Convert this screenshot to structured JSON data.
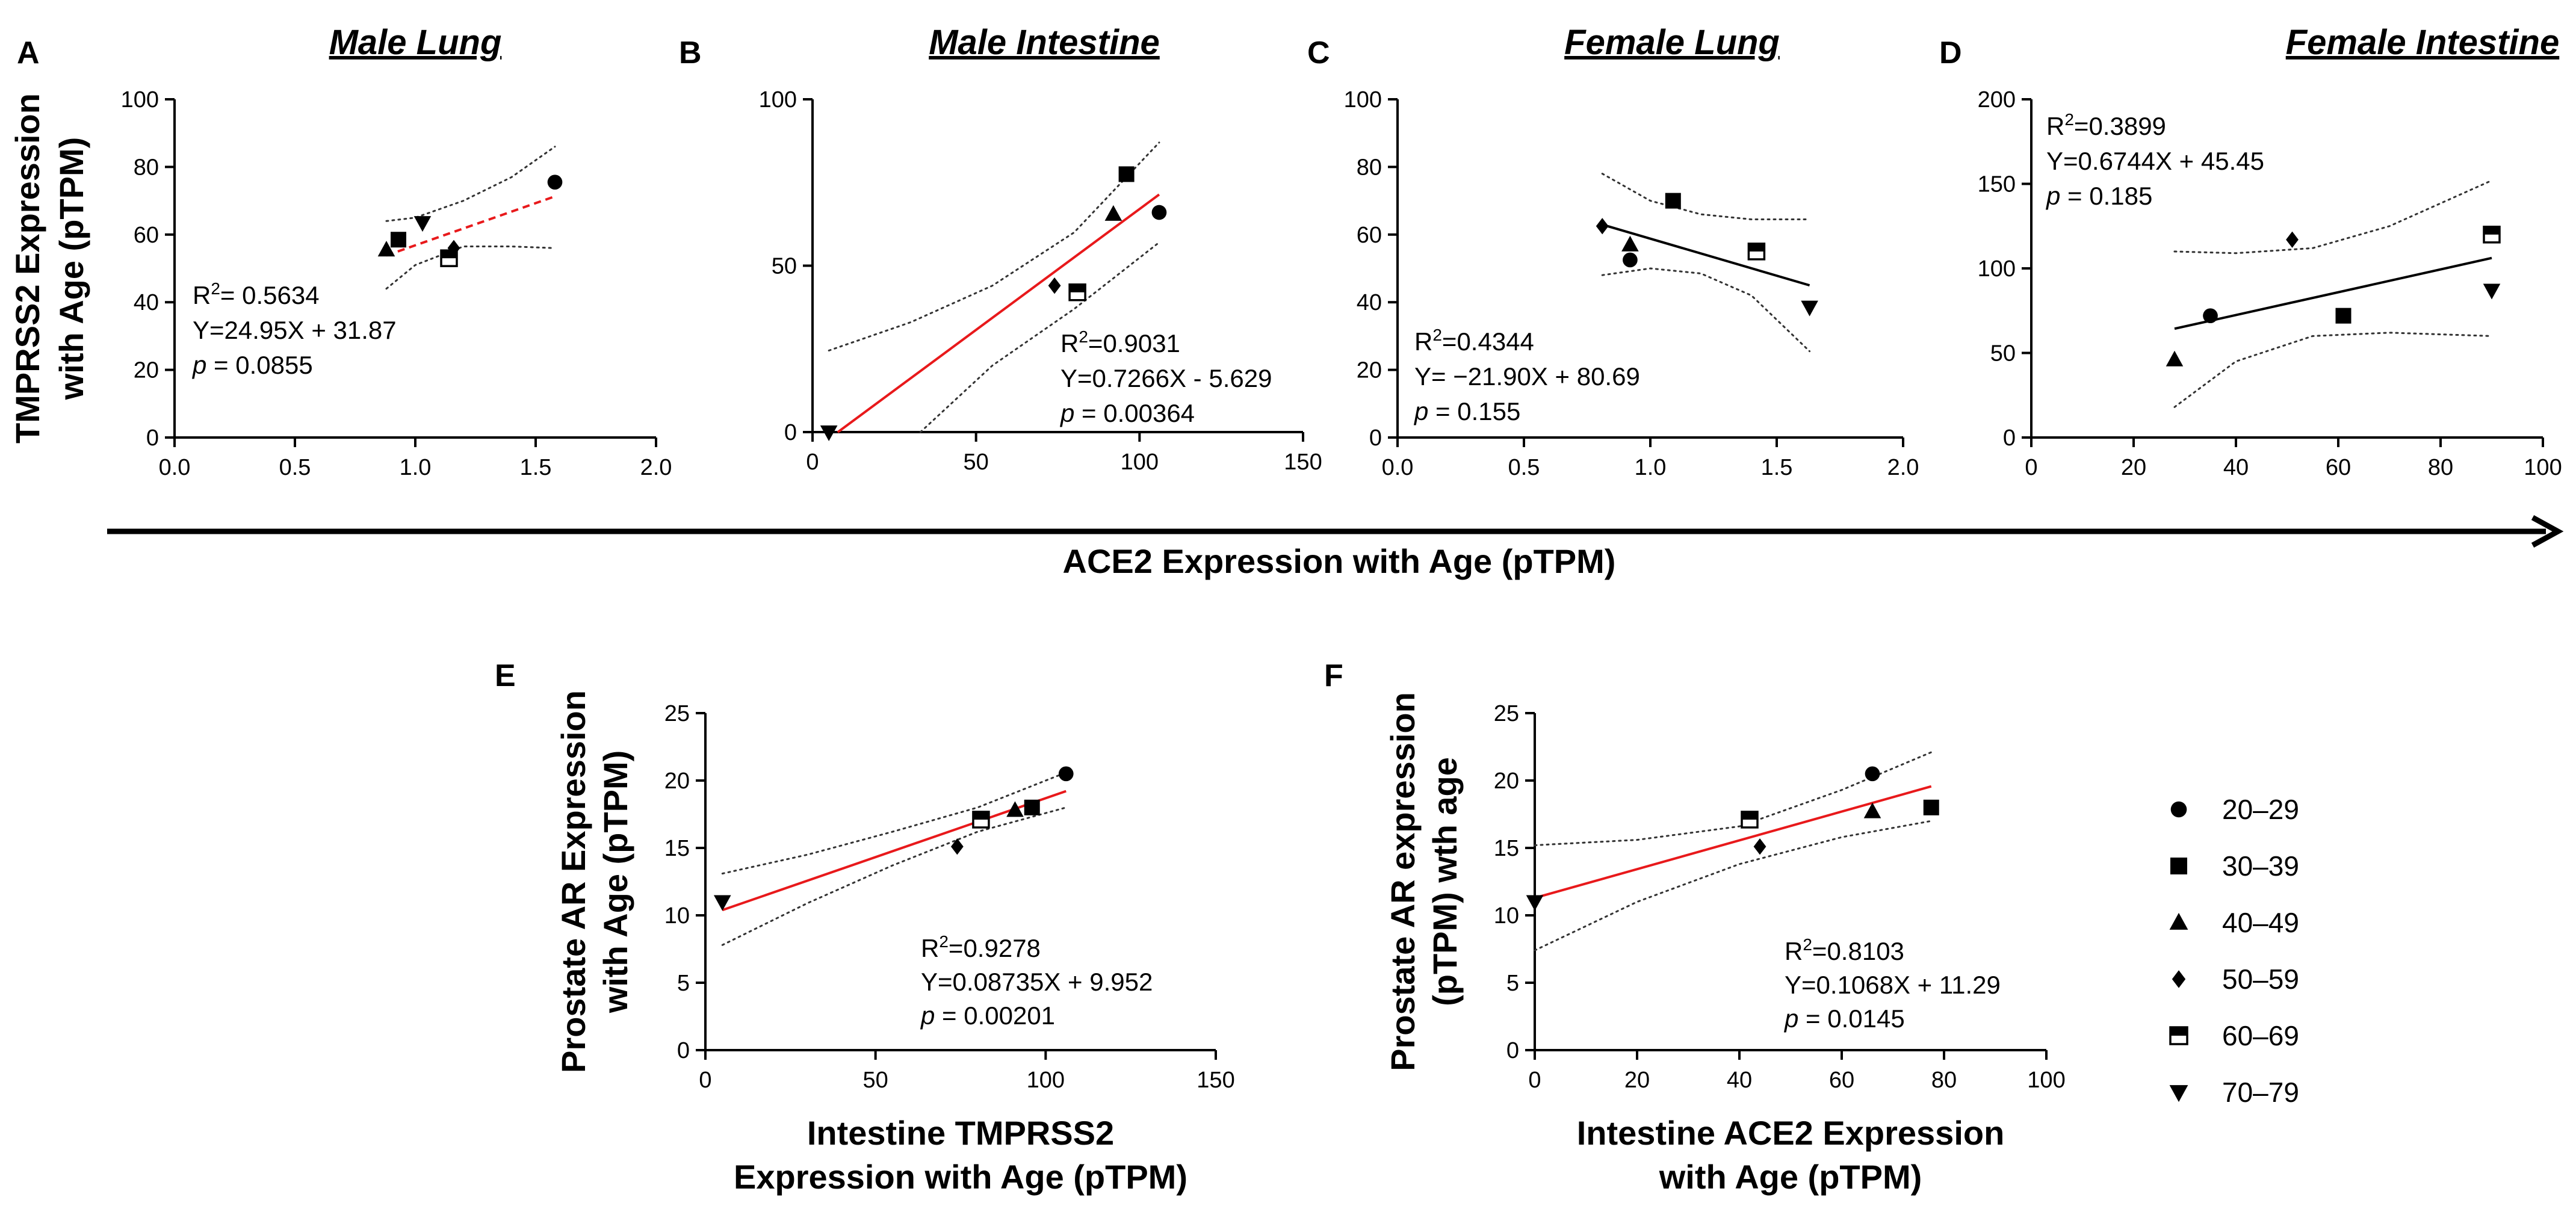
{
  "figure": {
    "shared_x_axis_label": "ACE2 Expression with Age (pTPM)",
    "shared_y_axis_label_line1": "TMPRSS2 Expression",
    "shared_y_axis_label_line2": "with Age (pTPM)"
  },
  "legend": {
    "items": [
      {
        "label": "20–29",
        "marker": "circle"
      },
      {
        "label": "30–39",
        "marker": "square"
      },
      {
        "label": "40–49",
        "marker": "triangle-up"
      },
      {
        "label": "50–59",
        "marker": "diamond"
      },
      {
        "label": "60–69",
        "marker": "half-square"
      },
      {
        "label": "70–79",
        "marker": "triangle-down"
      }
    ]
  },
  "chart_data": [
    {
      "type": "scatter",
      "panel": "A",
      "title": "Male Lung",
      "xlim": [
        0,
        2.0
      ],
      "ylim": [
        0,
        100
      ],
      "xticks": [
        0,
        0.5,
        1.0,
        1.5,
        2.0
      ],
      "xtick_labels": [
        "0.0",
        "0.5",
        "1.0",
        "1.5",
        "2.0"
      ],
      "yticks": [
        0,
        20,
        40,
        60,
        80,
        100
      ],
      "ytick_labels": [
        "0",
        "20",
        "40",
        "60",
        "80",
        "100"
      ],
      "points": [
        {
          "group": "20–29",
          "x": 1.58,
          "y": 75.5
        },
        {
          "group": "30–39",
          "x": 0.93,
          "y": 58.5
        },
        {
          "group": "40–49",
          "x": 0.88,
          "y": 55.5
        },
        {
          "group": "50–59",
          "x": 1.16,
          "y": 56
        },
        {
          "group": "60–69",
          "x": 1.14,
          "y": 53
        },
        {
          "group": "70–79",
          "x": 1.03,
          "y": 63.5
        }
      ],
      "fit": {
        "slope": 24.95,
        "intercept": 31.87,
        "x_range": [
          0.88,
          1.58
        ],
        "color": "#e8191b",
        "style": "dashed"
      },
      "ci_upper": [
        [
          0.88,
          64
        ],
        [
          1.0,
          65
        ],
        [
          1.2,
          70
        ],
        [
          1.4,
          77
        ],
        [
          1.58,
          86
        ]
      ],
      "ci_lower": [
        [
          0.88,
          44
        ],
        [
          1.0,
          51
        ],
        [
          1.2,
          56.5
        ],
        [
          1.4,
          56.5
        ],
        [
          1.58,
          56
        ]
      ],
      "stats": {
        "r2_prefix": "R",
        "r2_value": "= 0.5634",
        "equation": "Y=24.95X  + 31.87",
        "p_prefix": "p",
        "p_value": " = 0.0855"
      }
    },
    {
      "type": "scatter",
      "panel": "B",
      "title": "Male Intestine",
      "xlim": [
        0,
        150
      ],
      "ylim": [
        0,
        100
      ],
      "xticks": [
        0,
        50,
        100,
        150
      ],
      "xtick_labels": [
        "0",
        "50",
        "100",
        "150"
      ],
      "yticks": [
        0,
        50,
        100
      ],
      "ytick_labels": [
        "0",
        "50",
        "100"
      ],
      "points": [
        {
          "group": "20–29",
          "x": 106,
          "y": 66
        },
        {
          "group": "30–39",
          "x": 96,
          "y": 77.5
        },
        {
          "group": "40–49",
          "x": 92,
          "y": 65.5
        },
        {
          "group": "50–59",
          "x": 74,
          "y": 44
        },
        {
          "group": "60–69",
          "x": 81,
          "y": 42
        },
        {
          "group": "70–79",
          "x": 5,
          "y": 0
        }
      ],
      "fit": {
        "slope": 0.7266,
        "intercept": -5.629,
        "x_range": [
          7.7,
          106
        ],
        "color": "#e8191b",
        "style": "solid"
      },
      "ci_upper": [
        [
          5,
          24.5
        ],
        [
          30,
          33
        ],
        [
          55,
          44
        ],
        [
          80,
          60
        ],
        [
          106,
          87
        ]
      ],
      "ci_lower": [
        [
          33,
          0
        ],
        [
          55,
          20
        ],
        [
          80,
          37
        ],
        [
          106,
          57
        ]
      ],
      "stats": {
        "r2_prefix": "R",
        "r2_value": "=0.9031",
        "equation": "Y=0.7266X - 5.629",
        "p_prefix": "p",
        "p_value": " = 0.00364"
      }
    },
    {
      "type": "scatter",
      "panel": "C",
      "title": "Female Lung",
      "xlim": [
        0,
        2.0
      ],
      "ylim": [
        0,
        100
      ],
      "xticks": [
        0,
        0.5,
        1.0,
        1.5,
        2.0
      ],
      "xtick_labels": [
        "0.0",
        "0.5",
        "1.0",
        "1.5",
        "2.0"
      ],
      "yticks": [
        0,
        20,
        40,
        60,
        80,
        100
      ],
      "ytick_labels": [
        "0",
        "20",
        "40",
        "60",
        "80",
        "100"
      ],
      "points": [
        {
          "group": "20–29",
          "x": 0.92,
          "y": 52.5
        },
        {
          "group": "30–39",
          "x": 1.09,
          "y": 70
        },
        {
          "group": "40–49",
          "x": 0.92,
          "y": 57
        },
        {
          "group": "50–59",
          "x": 0.81,
          "y": 62.5
        },
        {
          "group": "60–69",
          "x": 1.42,
          "y": 55
        },
        {
          "group": "70–79",
          "x": 1.63,
          "y": 38.5
        }
      ],
      "fit": {
        "slope": -21.9,
        "intercept": 80.69,
        "x_range": [
          0.81,
          1.63
        ],
        "color": "#000000",
        "style": "solid"
      },
      "ci_upper": [
        [
          0.81,
          78
        ],
        [
          1.0,
          70
        ],
        [
          1.2,
          66
        ],
        [
          1.4,
          64.5
        ],
        [
          1.63,
          64.5
        ]
      ],
      "ci_lower": [
        [
          0.81,
          48
        ],
        [
          1.0,
          50
        ],
        [
          1.2,
          48.5
        ],
        [
          1.4,
          42
        ],
        [
          1.63,
          25.5
        ]
      ],
      "stats": {
        "r2_prefix": "R",
        "r2_value": "=0.4344",
        "equation": "Y= −21.90X  + 80.69",
        "p_prefix": "p",
        "p_value": " = 0.155"
      }
    },
    {
      "type": "scatter",
      "panel": "D",
      "title": "Female Intestine",
      "xlim": [
        0,
        100
      ],
      "ylim": [
        0,
        200
      ],
      "xticks": [
        0,
        20,
        40,
        60,
        80,
        100
      ],
      "xtick_labels": [
        "0",
        "20",
        "40",
        "60",
        "80",
        "100"
      ],
      "yticks": [
        0,
        50,
        100,
        150,
        200
      ],
      "ytick_labels": [
        "0",
        "50",
        "100",
        "150",
        "200"
      ],
      "points": [
        {
          "group": "20–29",
          "x": 35,
          "y": 72
        },
        {
          "group": "30–39",
          "x": 61,
          "y": 72
        },
        {
          "group": "40–49",
          "x": 28,
          "y": 46
        },
        {
          "group": "50–59",
          "x": 51,
          "y": 117
        },
        {
          "group": "60–69",
          "x": 90,
          "y": 120
        },
        {
          "group": "70–79",
          "x": 90,
          "y": 87
        }
      ],
      "fit": {
        "slope": 0.6744,
        "intercept": 45.45,
        "x_range": [
          28,
          90
        ],
        "color": "#000000",
        "style": "solid"
      },
      "ci_upper": [
        [
          28,
          110
        ],
        [
          40,
          109
        ],
        [
          55,
          112
        ],
        [
          70,
          125
        ],
        [
          90,
          152
        ]
      ],
      "ci_lower": [
        [
          28,
          18
        ],
        [
          40,
          45
        ],
        [
          55,
          60
        ],
        [
          70,
          62
        ],
        [
          90,
          60
        ]
      ],
      "stats": {
        "r2_prefix": "R",
        "r2_value": "=0.3899",
        "equation": "Y=0.6744X  + 45.45",
        "p_prefix": "p",
        "p_value": " = 0.185"
      }
    },
    {
      "type": "scatter",
      "panel": "E",
      "title": "",
      "xlabel_line1": "Intestine TMPRSS2",
      "xlabel_line2": "Expression with Age (pTPM)",
      "ylabel_line1": "Prostate AR Expression",
      "ylabel_line2": "with Age (pTPM)",
      "xlim": [
        0,
        150
      ],
      "ylim": [
        0,
        25
      ],
      "xticks": [
        0,
        50,
        100,
        150
      ],
      "xtick_labels": [
        "0",
        "50",
        "100",
        "150"
      ],
      "yticks": [
        0,
        5,
        10,
        15,
        20,
        25
      ],
      "ytick_labels": [
        "0",
        "5",
        "10",
        "15",
        "20",
        "25"
      ],
      "points": [
        {
          "group": "20–29",
          "x": 106,
          "y": 20.5
        },
        {
          "group": "30–39",
          "x": 96,
          "y": 18
        },
        {
          "group": "40–49",
          "x": 91,
          "y": 17.8
        },
        {
          "group": "50–59",
          "x": 74,
          "y": 15.1
        },
        {
          "group": "60–69",
          "x": 81,
          "y": 17.1
        },
        {
          "group": "70–79",
          "x": 5,
          "y": 11
        }
      ],
      "fit": {
        "slope": 0.08735,
        "intercept": 9.952,
        "x_range": [
          5,
          106
        ],
        "color": "#e8191b",
        "style": "solid"
      },
      "ci_upper": [
        [
          5,
          13.1
        ],
        [
          30,
          14.5
        ],
        [
          55,
          16.2
        ],
        [
          80,
          18
        ],
        [
          106,
          20.6
        ]
      ],
      "ci_lower": [
        [
          5,
          7.8
        ],
        [
          30,
          10.9
        ],
        [
          55,
          13.7
        ],
        [
          80,
          16.2
        ],
        [
          106,
          18
        ]
      ],
      "stats": {
        "r2_prefix": "R",
        "r2_value": "=0.9278",
        "equation": "Y=0.08735X  + 9.952",
        "p_prefix": "p",
        "p_value": " = 0.00201"
      }
    },
    {
      "type": "scatter",
      "panel": "F",
      "title": "",
      "xlabel_line1": "Intestine ACE2 Expression",
      "xlabel_line2": "with Age (pTPM)",
      "ylabel_line1": "Prostate AR expression",
      "ylabel_line2": "(pTPM) wth age",
      "xlim": [
        0,
        100
      ],
      "ylim": [
        0,
        25
      ],
      "xticks": [
        0,
        20,
        40,
        60,
        80,
        100
      ],
      "xtick_labels": [
        "0",
        "20",
        "40",
        "60",
        "80",
        "100"
      ],
      "yticks": [
        0,
        5,
        10,
        15,
        20,
        25
      ],
      "ytick_labels": [
        "0",
        "5",
        "10",
        "15",
        "20",
        "25"
      ],
      "points": [
        {
          "group": "20–29",
          "x": 66,
          "y": 20.5
        },
        {
          "group": "30–39",
          "x": 77.5,
          "y": 18
        },
        {
          "group": "40–49",
          "x": 66,
          "y": 17.7
        },
        {
          "group": "50–59",
          "x": 44,
          "y": 15.1
        },
        {
          "group": "60–69",
          "x": 42,
          "y": 17.1
        },
        {
          "group": "70–79",
          "x": 0,
          "y": 11
        }
      ],
      "fit": {
        "slope": 0.1068,
        "intercept": 11.29,
        "x_range": [
          0,
          77.5
        ],
        "color": "#e8191b",
        "style": "solid"
      },
      "ci_upper": [
        [
          0,
          15.2
        ],
        [
          20,
          15.6
        ],
        [
          40,
          16.6
        ],
        [
          60,
          19.3
        ],
        [
          77.5,
          22.1
        ]
      ],
      "ci_lower": [
        [
          0,
          7.4
        ],
        [
          20,
          11
        ],
        [
          40,
          13.8
        ],
        [
          60,
          15.8
        ],
        [
          77.5,
          17
        ]
      ],
      "stats": {
        "r2_prefix": "R",
        "r2_value": "=0.8103",
        "equation": "Y=0.1068X  + 11.29",
        "p_prefix": "p",
        "p_value": " = 0.0145"
      }
    }
  ]
}
